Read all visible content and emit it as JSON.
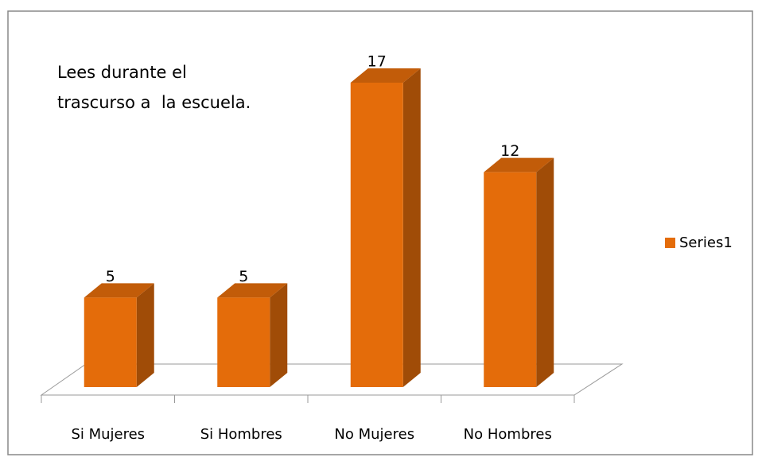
{
  "chart_data": {
    "type": "bar3d",
    "title": [
      "Lees durante el",
      "trascurso a  la escuela."
    ],
    "categories": [
      "Si Mujeres",
      "Si Hombres",
      "No Mujeres",
      "No Hombres"
    ],
    "series": [
      {
        "name": "Series1",
        "color": "#e46c0a",
        "values": [
          5,
          5,
          17,
          12
        ]
      }
    ],
    "legend": "right"
  }
}
